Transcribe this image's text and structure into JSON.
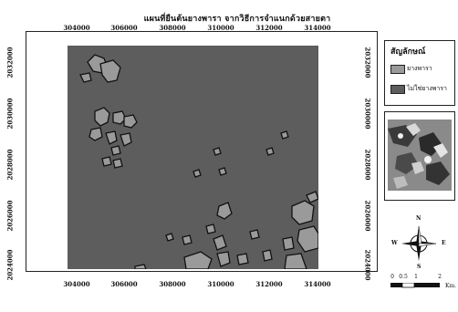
{
  "map": {
    "title": "แผนที่ยืนต้นยางพารา จากวิธีการจำแนกด้วยสายตา"
  },
  "axes": {
    "x_ticks": [
      "304000",
      "306000",
      "308000",
      "310000",
      "312000",
      "314000"
    ],
    "y_ticks": [
      "2032000",
      "2030000",
      "2028000",
      "2026000",
      "2024000"
    ]
  },
  "legend": {
    "title": "สัญลักษณ์",
    "items": [
      {
        "label": "ยางพารา",
        "color": "#9a9a9a"
      },
      {
        "label": "ไม่ใช่ยางพารา",
        "color": "#5d5d5d"
      }
    ]
  },
  "compass": {
    "n": "N",
    "s": "S",
    "e": "E",
    "w": "W"
  },
  "scale": {
    "ticks": [
      "0",
      "0.5",
      "1",
      "2"
    ],
    "unit": "Km."
  },
  "colors": {
    "background": "#5d5d5d",
    "rubber": "#9a9a9a",
    "outline": "#111111"
  }
}
